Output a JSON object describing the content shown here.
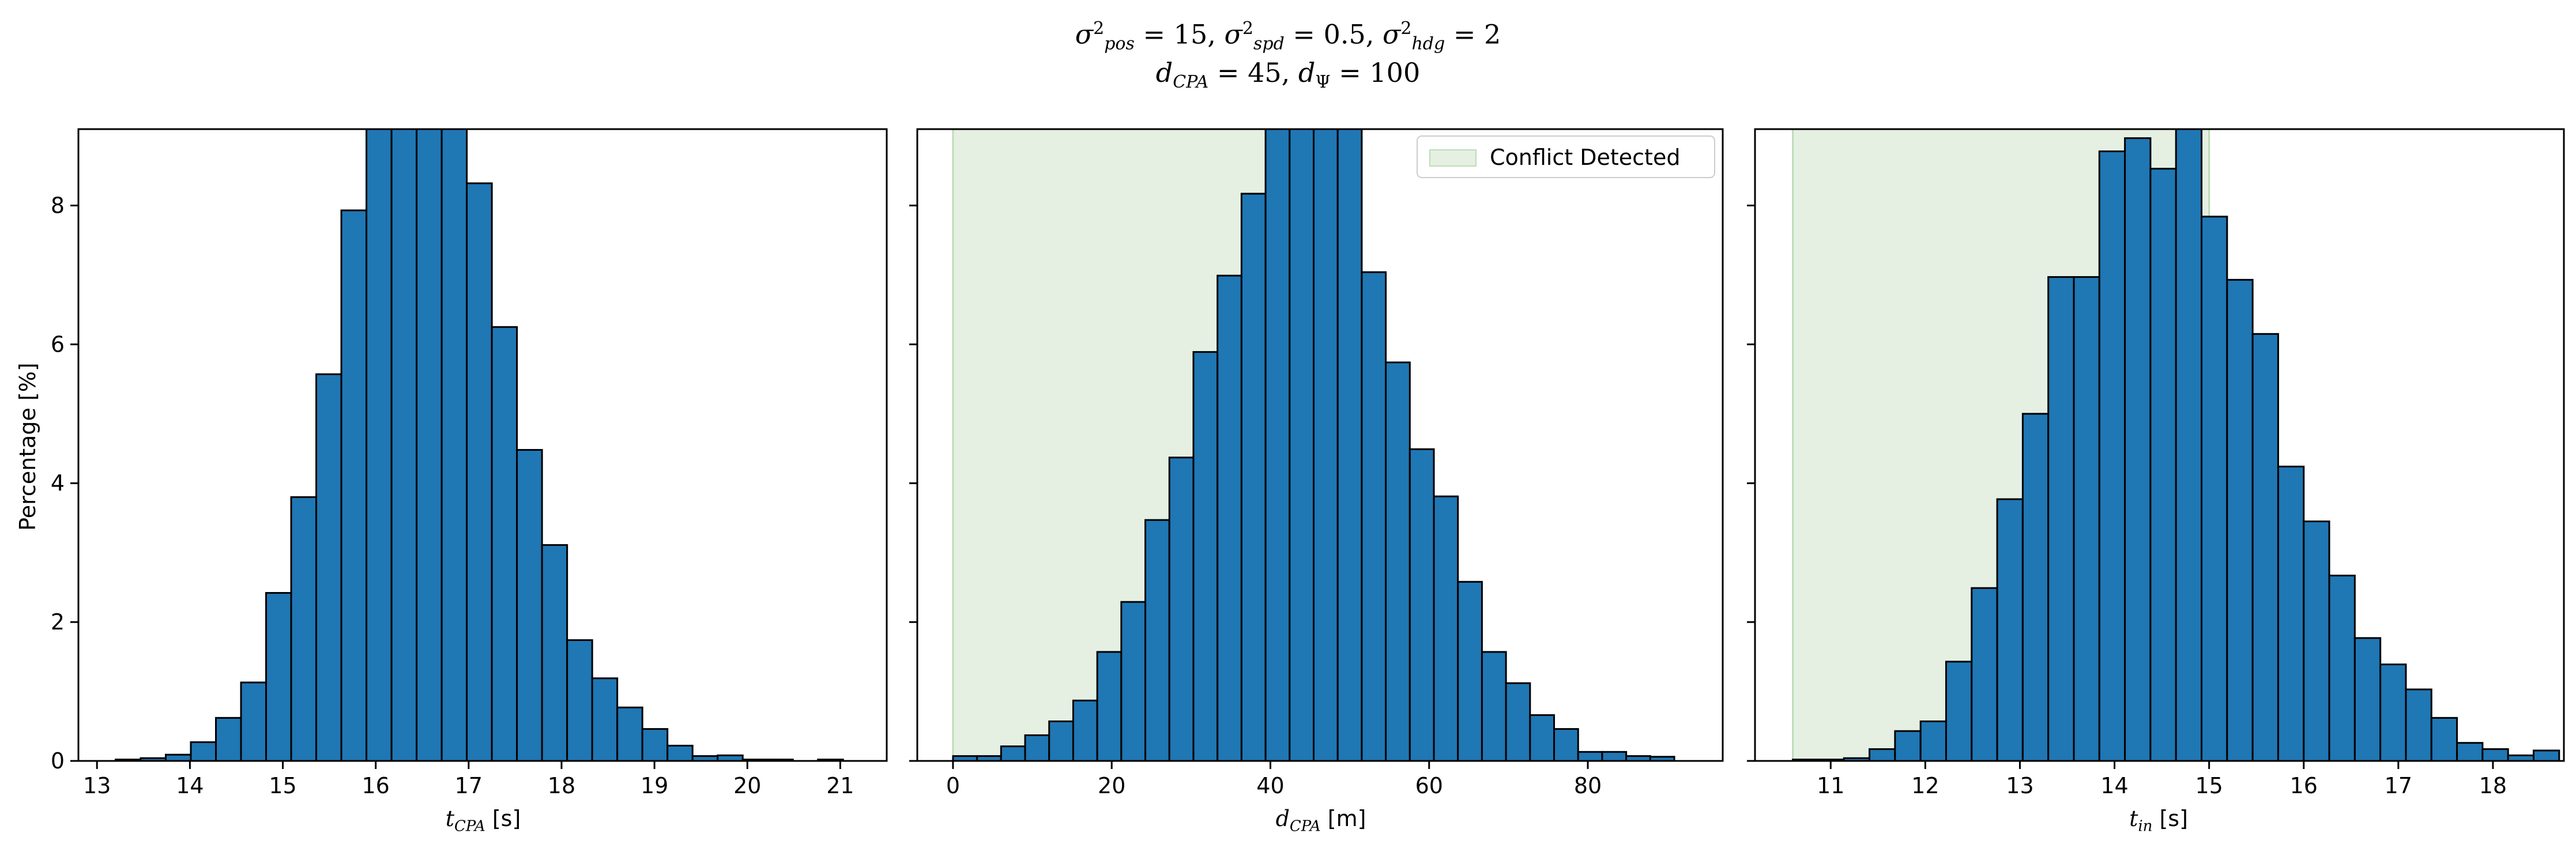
{
  "figure": {
    "title_line1": {
      "s1": "σ",
      "sub1": "pos",
      "v1": " = 15, ",
      "s2": "σ",
      "sub2": "spd",
      "v2": " = 0.5, ",
      "s3": "σ",
      "sub3": "hdg",
      "v3": " = 2",
      "exp": "2"
    },
    "title_line2": {
      "d1": "d",
      "sub1": "CPA",
      "v1": " = 45, ",
      "d2": "d",
      "sub2": "Ψ",
      "v2": " = 100"
    }
  },
  "colors": {
    "bar": "#1f77b4",
    "edge": "#000000",
    "conflict": "#e5f0e3",
    "conflict_edge": "#bddcb6"
  },
  "chart_data": [
    {
      "type": "bar",
      "subtype": "histogram",
      "xlabel_var": "t",
      "xlabel_sub": "CPA",
      "xlabel_unit": " [s]",
      "ylabel": "Percentage [%]",
      "xlim": [
        12.8,
        21.5
      ],
      "ylim": [
        0,
        9.1
      ],
      "xticks": [
        13,
        14,
        15,
        16,
        17,
        18,
        19,
        20,
        21
      ],
      "yticks": [
        0,
        2,
        4,
        6,
        8
      ],
      "bin_start": 13.2,
      "bin_width": 0.27,
      "values": [
        0.02,
        0.04,
        0.09,
        0.27,
        0.62,
        1.13,
        2.42,
        3.8,
        5.57,
        7.93,
        9.3,
        9.3,
        9.3,
        9.3,
        8.32,
        6.25,
        4.48,
        3.11,
        1.74,
        1.19,
        0.77,
        0.46,
        0.22,
        0.07,
        0.08,
        0.02,
        0.02,
        0.0,
        0.02
      ],
      "shaded_region": null,
      "legend": null
    },
    {
      "type": "bar",
      "subtype": "histogram",
      "xlabel_var": "d",
      "xlabel_sub": "CPA",
      "xlabel_unit": " [m]",
      "ylabel": "",
      "xlim": [
        -4.5,
        97
      ],
      "ylim": [
        0,
        9.1
      ],
      "xticks": [
        0,
        20,
        40,
        60,
        80
      ],
      "yticks": [
        0,
        2,
        4,
        6,
        8
      ],
      "bin_start": 0,
      "bin_width": 3.03,
      "values": [
        0.07,
        0.07,
        0.21,
        0.37,
        0.57,
        0.87,
        1.57,
        2.29,
        3.47,
        4.37,
        5.89,
        6.99,
        8.17,
        9.3,
        9.3,
        9.3,
        9.3,
        7.04,
        5.74,
        4.49,
        3.81,
        2.58,
        1.57,
        1.12,
        0.66,
        0.46,
        0.13,
        0.13,
        0.07,
        0.06
      ],
      "shaded_region": [
        0,
        45
      ],
      "legend": {
        "label": "Conflict Detected",
        "loc": "upper right"
      }
    },
    {
      "type": "bar",
      "subtype": "histogram",
      "xlabel_var": "t",
      "xlabel_sub": "in",
      "xlabel_unit": " [s]",
      "ylabel": "",
      "xlim": [
        10.2,
        18.75
      ],
      "ylim": [
        0,
        9.1
      ],
      "xticks": [
        11,
        12,
        13,
        14,
        15,
        16,
        17,
        18
      ],
      "yticks": [
        0,
        2,
        4,
        6,
        8
      ],
      "bin_start": 10.6,
      "bin_width": 0.27,
      "values": [
        0.02,
        0.02,
        0.04,
        0.17,
        0.43,
        0.57,
        1.43,
        2.49,
        3.77,
        5.0,
        6.97,
        6.97,
        8.78,
        8.97,
        8.53,
        9.3,
        7.84,
        6.93,
        6.15,
        4.24,
        3.45,
        2.67,
        1.77,
        1.39,
        1.03,
        0.62,
        0.26,
        0.17,
        0.08,
        0.15
      ],
      "shaded_region": [
        10.6,
        15.0
      ],
      "legend": null
    }
  ]
}
